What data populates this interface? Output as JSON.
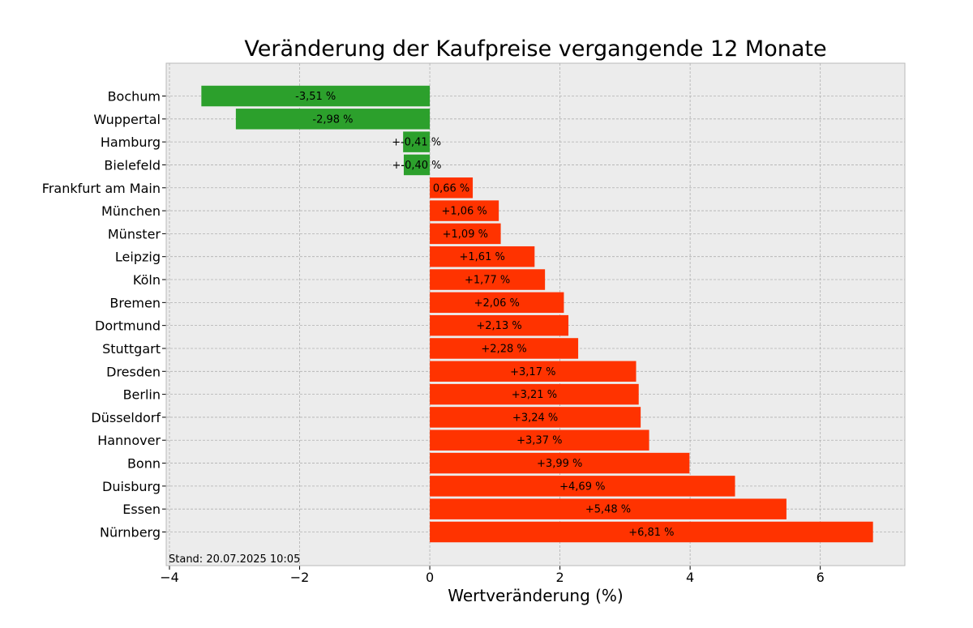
{
  "chart_data": {
    "type": "bar",
    "orientation": "horizontal",
    "title": "Veränderung der Kaufpreise vergangende 12 Monate",
    "xlabel": "Wertveränderung (%)",
    "ylabel": "",
    "xlim": [
      -4.05,
      7.3
    ],
    "xticks": [
      -4,
      -2,
      0,
      2,
      4,
      6
    ],
    "xtick_labels": [
      "−4",
      "−2",
      "0",
      "2",
      "4",
      "6"
    ],
    "grid": true,
    "colors": {
      "negative": "#2ca02c",
      "positive": "#ff3300",
      "plot_bg": "#ececec",
      "grid": "#b0b0b0"
    },
    "categories": [
      "Bochum",
      "Wuppertal",
      "Hamburg",
      "Bielefeld",
      "Frankfurt am Main",
      "München",
      "Münster",
      "Leipzig",
      "Köln",
      "Bremen",
      "Dortmund",
      "Stuttgart",
      "Dresden",
      "Berlin",
      "Düsseldorf",
      "Hannover",
      "Bonn",
      "Duisburg",
      "Essen",
      "Nürnberg"
    ],
    "values": [
      -3.51,
      -2.98,
      -0.41,
      -0.4,
      0.66,
      1.06,
      1.09,
      1.61,
      1.77,
      2.06,
      2.13,
      2.28,
      3.17,
      3.21,
      3.24,
      3.37,
      3.99,
      4.69,
      5.48,
      6.81
    ],
    "value_labels": [
      "-3,51 %",
      "-2,98 %",
      "+-0,41 %",
      "+-0,40 %",
      "0,66 %",
      "+1,06 %",
      "+1,09 %",
      "+1,61 %",
      "+1,77 %",
      "+2,06 %",
      "+2,13 %",
      "+2,28 %",
      "+3,17 %",
      "+3,21 %",
      "+3,24 %",
      "+3,37 %",
      "+3,99 %",
      "+4,69 %",
      "+5,48 %",
      "+6,81 %"
    ],
    "annotation": "Stand: 20.07.2025 10:05"
  }
}
